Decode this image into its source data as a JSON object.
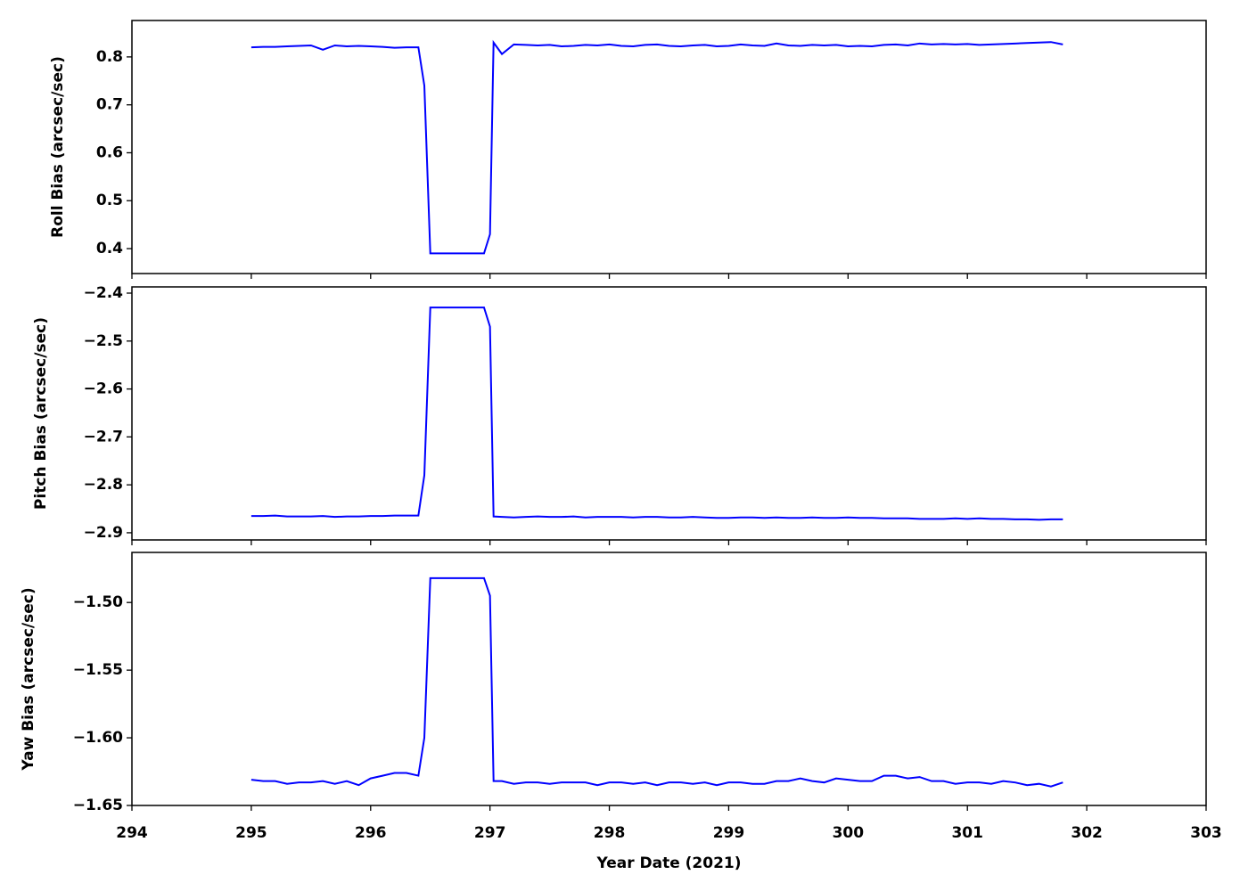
{
  "chart_data": [
    {
      "type": "line",
      "ylabel": "Roll Bias (arcsec/sec)",
      "color": "#0000ff",
      "xlim": [
        294,
        303
      ],
      "xticks": [
        294,
        295,
        296,
        297,
        298,
        299,
        300,
        301,
        302,
        303
      ],
      "ylim": [
        0.348,
        0.876
      ],
      "yticks": [
        0.4,
        0.5,
        0.6,
        0.7,
        0.8
      ],
      "x": [
        295.0,
        295.1,
        295.2,
        295.3,
        295.4,
        295.5,
        295.6,
        295.7,
        295.8,
        295.9,
        296.0,
        296.1,
        296.2,
        296.3,
        296.4,
        296.45,
        296.5,
        296.6,
        296.7,
        296.8,
        296.9,
        296.95,
        297.0,
        297.03,
        297.1,
        297.2,
        297.3,
        297.4,
        297.5,
        297.6,
        297.7,
        297.8,
        297.9,
        298.0,
        298.1,
        298.2,
        298.3,
        298.4,
        298.5,
        298.6,
        298.7,
        298.8,
        298.9,
        299.0,
        299.1,
        299.2,
        299.3,
        299.4,
        299.5,
        299.6,
        299.7,
        299.8,
        299.9,
        300.0,
        300.1,
        300.2,
        300.3,
        300.4,
        300.5,
        300.6,
        300.7,
        300.8,
        300.9,
        301.0,
        301.1,
        301.2,
        301.3,
        301.4,
        301.5,
        301.6,
        301.7,
        301.8
      ],
      "values": [
        0.82,
        0.821,
        0.821,
        0.822,
        0.823,
        0.824,
        0.815,
        0.824,
        0.822,
        0.823,
        0.822,
        0.821,
        0.819,
        0.82,
        0.82,
        0.74,
        0.39,
        0.39,
        0.39,
        0.39,
        0.39,
        0.39,
        0.43,
        0.83,
        0.806,
        0.826,
        0.825,
        0.824,
        0.825,
        0.822,
        0.823,
        0.825,
        0.824,
        0.826,
        0.823,
        0.822,
        0.825,
        0.826,
        0.823,
        0.822,
        0.824,
        0.825,
        0.822,
        0.823,
        0.826,
        0.824,
        0.823,
        0.828,
        0.824,
        0.823,
        0.825,
        0.824,
        0.825,
        0.822,
        0.823,
        0.822,
        0.825,
        0.826,
        0.824,
        0.828,
        0.826,
        0.827,
        0.826,
        0.827,
        0.825,
        0.826,
        0.827,
        0.828,
        0.829,
        0.83,
        0.831,
        0.826
      ]
    },
    {
      "type": "line",
      "ylabel": "Pitch Bias (arcsec/sec)",
      "color": "#0000ff",
      "xlim": [
        294,
        303
      ],
      "xticks": [
        294,
        295,
        296,
        297,
        298,
        299,
        300,
        301,
        302,
        303
      ],
      "ylim": [
        -2.915,
        -2.387
      ],
      "yticks": [
        {
          "value": -2.9,
          "label": "−2.9"
        },
        {
          "value": -2.8,
          "label": "−2.8"
        },
        {
          "value": -2.7,
          "label": "−2.7"
        },
        {
          "value": -2.6,
          "label": "−2.6"
        },
        {
          "value": -2.5,
          "label": "−2.5"
        },
        {
          "value": -2.4,
          "label": "−2.4"
        }
      ],
      "x": [
        295.0,
        295.1,
        295.2,
        295.3,
        295.4,
        295.5,
        295.6,
        295.7,
        295.8,
        295.9,
        296.0,
        296.1,
        296.2,
        296.3,
        296.4,
        296.45,
        296.5,
        296.6,
        296.7,
        296.8,
        296.9,
        296.95,
        297.0,
        297.03,
        297.1,
        297.2,
        297.3,
        297.4,
        297.5,
        297.6,
        297.7,
        297.8,
        297.9,
        298.0,
        298.1,
        298.2,
        298.3,
        298.4,
        298.5,
        298.6,
        298.7,
        298.8,
        298.9,
        299.0,
        299.1,
        299.2,
        299.3,
        299.4,
        299.5,
        299.6,
        299.7,
        299.8,
        299.9,
        300.0,
        300.1,
        300.2,
        300.3,
        300.4,
        300.5,
        300.6,
        300.7,
        300.8,
        300.9,
        301.0,
        301.1,
        301.2,
        301.3,
        301.4,
        301.5,
        301.6,
        301.7,
        301.8
      ],
      "values": [
        -2.865,
        -2.865,
        -2.864,
        -2.866,
        -2.866,
        -2.866,
        -2.865,
        -2.867,
        -2.866,
        -2.866,
        -2.865,
        -2.865,
        -2.864,
        -2.864,
        -2.864,
        -2.78,
        -2.43,
        -2.43,
        -2.43,
        -2.43,
        -2.43,
        -2.43,
        -2.47,
        -2.866,
        -2.867,
        -2.868,
        -2.867,
        -2.866,
        -2.867,
        -2.867,
        -2.866,
        -2.868,
        -2.867,
        -2.867,
        -2.867,
        -2.868,
        -2.867,
        -2.867,
        -2.868,
        -2.868,
        -2.867,
        -2.868,
        -2.869,
        -2.869,
        -2.868,
        -2.868,
        -2.869,
        -2.868,
        -2.869,
        -2.869,
        -2.868,
        -2.869,
        -2.869,
        -2.868,
        -2.869,
        -2.869,
        -2.87,
        -2.87,
        -2.87,
        -2.871,
        -2.871,
        -2.871,
        -2.87,
        -2.871,
        -2.87,
        -2.871,
        -2.871,
        -2.872,
        -2.872,
        -2.873,
        -2.872,
        -2.872
      ]
    },
    {
      "type": "line",
      "ylabel": "Yaw Bias (arcsec/sec)",
      "xlabel": "Year Date (2021)",
      "color": "#0000ff",
      "xlim": [
        294,
        303
      ],
      "xticks": [
        294,
        295,
        296,
        297,
        298,
        299,
        300,
        301,
        302,
        303
      ],
      "ylim": [
        -1.65,
        -1.463
      ],
      "yticks": [
        {
          "value": -1.65,
          "label": "−1.65"
        },
        {
          "value": -1.6,
          "label": "−1.60"
        },
        {
          "value": -1.55,
          "label": "−1.55"
        },
        {
          "value": -1.5,
          "label": "−1.50"
        }
      ],
      "x": [
        295.0,
        295.1,
        295.2,
        295.3,
        295.4,
        295.5,
        295.6,
        295.7,
        295.8,
        295.9,
        296.0,
        296.1,
        296.2,
        296.3,
        296.4,
        296.45,
        296.5,
        296.6,
        296.7,
        296.8,
        296.9,
        296.95,
        297.0,
        297.03,
        297.1,
        297.2,
        297.3,
        297.4,
        297.5,
        297.6,
        297.7,
        297.8,
        297.9,
        298.0,
        298.1,
        298.2,
        298.3,
        298.4,
        298.5,
        298.6,
        298.7,
        298.8,
        298.9,
        299.0,
        299.1,
        299.2,
        299.3,
        299.4,
        299.5,
        299.6,
        299.7,
        299.8,
        299.9,
        300.0,
        300.1,
        300.2,
        300.3,
        300.4,
        300.5,
        300.6,
        300.7,
        300.8,
        300.9,
        301.0,
        301.1,
        301.2,
        301.3,
        301.4,
        301.5,
        301.6,
        301.7,
        301.8
      ],
      "values": [
        -1.631,
        -1.632,
        -1.632,
        -1.634,
        -1.633,
        -1.633,
        -1.632,
        -1.634,
        -1.632,
        -1.635,
        -1.63,
        -1.628,
        -1.626,
        -1.626,
        -1.628,
        -1.6,
        -1.482,
        -1.482,
        -1.482,
        -1.482,
        -1.482,
        -1.482,
        -1.495,
        -1.632,
        -1.632,
        -1.634,
        -1.633,
        -1.633,
        -1.634,
        -1.633,
        -1.633,
        -1.633,
        -1.635,
        -1.633,
        -1.633,
        -1.634,
        -1.633,
        -1.635,
        -1.633,
        -1.633,
        -1.634,
        -1.633,
        -1.635,
        -1.633,
        -1.633,
        -1.634,
        -1.634,
        -1.632,
        -1.632,
        -1.63,
        -1.632,
        -1.633,
        -1.63,
        -1.631,
        -1.632,
        -1.632,
        -1.628,
        -1.628,
        -1.63,
        -1.629,
        -1.632,
        -1.632,
        -1.634,
        -1.633,
        -1.633,
        -1.634,
        -1.632,
        -1.633,
        -1.635,
        -1.634,
        -1.636,
        -1.633
      ]
    }
  ]
}
